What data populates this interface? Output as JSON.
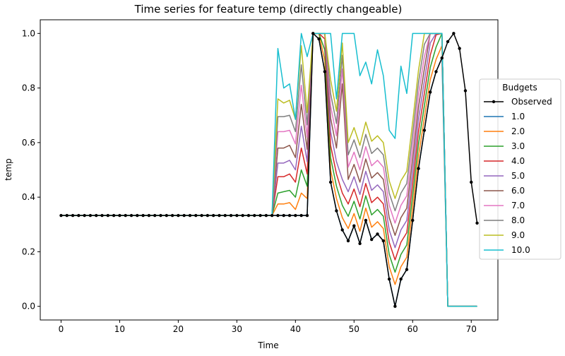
{
  "chart_data": {
    "type": "line",
    "title": "Time series for feature temp (directly changeable)",
    "xlabel": "Time",
    "ylabel": "temp",
    "xlim": [
      -3.55,
      74.55
    ],
    "ylim": [
      -0.05,
      1.05
    ],
    "xticks": [
      0,
      10,
      20,
      30,
      40,
      50,
      60,
      70
    ],
    "yticks": [
      0.0,
      0.2,
      0.4,
      0.6,
      0.8,
      1.0
    ],
    "tick_decimals": 1,
    "grid": false,
    "legend": {
      "title": "Budgets",
      "placement": "right"
    },
    "x": [
      0,
      1,
      2,
      3,
      4,
      5,
      6,
      7,
      8,
      9,
      10,
      11,
      12,
      13,
      14,
      15,
      16,
      17,
      18,
      19,
      20,
      21,
      22,
      23,
      24,
      25,
      26,
      27,
      28,
      29,
      30,
      31,
      32,
      33,
      34,
      35,
      36,
      37,
      38,
      39,
      40,
      41,
      42,
      43,
      44,
      45,
      46,
      47,
      48,
      49,
      50,
      51,
      52,
      53,
      54,
      55,
      56,
      57,
      58,
      59,
      60,
      61,
      62,
      63,
      64,
      65,
      66,
      67,
      68,
      69,
      70,
      71
    ],
    "series": [
      {
        "name": "Observed",
        "color": "#000000",
        "marker": true,
        "values": [
          0.333,
          0.333,
          0.333,
          0.333,
          0.333,
          0.333,
          0.333,
          0.333,
          0.333,
          0.333,
          0.333,
          0.333,
          0.333,
          0.333,
          0.333,
          0.333,
          0.333,
          0.333,
          0.333,
          0.333,
          0.333,
          0.333,
          0.333,
          0.333,
          0.333,
          0.333,
          0.333,
          0.333,
          0.333,
          0.333,
          0.333,
          0.333,
          0.333,
          0.333,
          0.333,
          0.333,
          0.333,
          0.333,
          0.333,
          0.333,
          0.333,
          0.333,
          0.333,
          1.0,
          0.98,
          0.86,
          0.455,
          0.35,
          0.28,
          0.24,
          0.295,
          0.23,
          0.315,
          0.245,
          0.265,
          0.24,
          0.1,
          0.0,
          0.1,
          0.135,
          0.315,
          0.505,
          0.645,
          0.785,
          0.86,
          0.91,
          0.97,
          1.0,
          0.945,
          0.79,
          0.455,
          0.305
        ]
      },
      {
        "name": "1.0",
        "color": "#1f77b4",
        "values": [
          0.333,
          0.333,
          0.333,
          0.333,
          0.333,
          0.333,
          0.333,
          0.333,
          0.333,
          0.333,
          0.333,
          0.333,
          0.333,
          0.333,
          0.333,
          0.333,
          0.333,
          0.333,
          0.333,
          0.333,
          0.333,
          0.333,
          0.333,
          0.333,
          0.333,
          0.333,
          0.333,
          0.333,
          0.333,
          0.333,
          0.333,
          0.333,
          0.333,
          0.333,
          0.333,
          0.333,
          0.333,
          0.333,
          0.333,
          0.333,
          0.333,
          0.333,
          0.333,
          1.0,
          0.98,
          0.86,
          0.455,
          0.35,
          0.28,
          0.24,
          0.295,
          0.23,
          0.315,
          0.245,
          0.265,
          0.24,
          0.1,
          0.0,
          0.1,
          0.135,
          0.315,
          0.505,
          0.645,
          0.785,
          0.86,
          0.91,
          0.0,
          0.0,
          0.0,
          0.0,
          0.0,
          0.0
        ]
      },
      {
        "name": "2.0",
        "color": "#ff7f0e",
        "values": [
          0.333,
          0.333,
          0.333,
          0.333,
          0.333,
          0.333,
          0.333,
          0.333,
          0.333,
          0.333,
          0.333,
          0.333,
          0.333,
          0.333,
          0.333,
          0.333,
          0.333,
          0.333,
          0.333,
          0.333,
          0.333,
          0.333,
          0.333,
          0.333,
          0.333,
          0.333,
          0.333,
          0.333,
          0.333,
          0.333,
          0.333,
          0.333,
          0.333,
          0.333,
          0.333,
          0.333,
          0.333,
          0.375,
          0.375,
          0.38,
          0.355,
          0.415,
          0.395,
          1.0,
          1.0,
          0.9,
          0.5,
          0.395,
          0.325,
          0.285,
          0.34,
          0.275,
          0.36,
          0.29,
          0.31,
          0.285,
          0.145,
          0.08,
          0.145,
          0.18,
          0.36,
          0.55,
          0.69,
          0.83,
          0.905,
          0.955,
          0.0,
          0.0,
          0.0,
          0.0,
          0.0,
          0.0
        ]
      },
      {
        "name": "3.0",
        "color": "#2ca02c",
        "values": [
          0.333,
          0.333,
          0.333,
          0.333,
          0.333,
          0.333,
          0.333,
          0.333,
          0.333,
          0.333,
          0.333,
          0.333,
          0.333,
          0.333,
          0.333,
          0.333,
          0.333,
          0.333,
          0.333,
          0.333,
          0.333,
          0.333,
          0.333,
          0.333,
          0.333,
          0.333,
          0.333,
          0.333,
          0.333,
          0.333,
          0.333,
          0.333,
          0.333,
          0.333,
          0.333,
          0.333,
          0.333,
          0.415,
          0.42,
          0.425,
          0.4,
          0.5,
          0.44,
          1.0,
          1.0,
          0.94,
          0.545,
          0.44,
          0.37,
          0.33,
          0.385,
          0.32,
          0.405,
          0.335,
          0.355,
          0.33,
          0.19,
          0.125,
          0.19,
          0.225,
          0.405,
          0.595,
          0.735,
          0.875,
          0.95,
          1.0,
          0.0,
          0.0,
          0.0,
          0.0,
          0.0,
          0.0
        ]
      },
      {
        "name": "4.0",
        "color": "#d62728",
        "values": [
          0.333,
          0.333,
          0.333,
          0.333,
          0.333,
          0.333,
          0.333,
          0.333,
          0.333,
          0.333,
          0.333,
          0.333,
          0.333,
          0.333,
          0.333,
          0.333,
          0.333,
          0.333,
          0.333,
          0.333,
          0.333,
          0.333,
          0.333,
          0.333,
          0.333,
          0.333,
          0.333,
          0.333,
          0.333,
          0.333,
          0.333,
          0.333,
          0.333,
          0.333,
          0.333,
          0.333,
          0.333,
          0.475,
          0.475,
          0.485,
          0.455,
          0.58,
          0.485,
          1.0,
          1.0,
          0.98,
          0.59,
          0.485,
          0.415,
          0.375,
          0.43,
          0.365,
          0.45,
          0.38,
          0.4,
          0.375,
          0.235,
          0.17,
          0.235,
          0.27,
          0.45,
          0.64,
          0.78,
          0.92,
          0.995,
          1.0,
          0.0,
          0.0,
          0.0,
          0.0,
          0.0,
          0.0
        ]
      },
      {
        "name": "5.0",
        "color": "#9467bd",
        "values": [
          0.333,
          0.333,
          0.333,
          0.333,
          0.333,
          0.333,
          0.333,
          0.333,
          0.333,
          0.333,
          0.333,
          0.333,
          0.333,
          0.333,
          0.333,
          0.333,
          0.333,
          0.333,
          0.333,
          0.333,
          0.333,
          0.333,
          0.333,
          0.333,
          0.333,
          0.333,
          0.333,
          0.333,
          0.333,
          0.333,
          0.333,
          0.333,
          0.333,
          0.333,
          0.333,
          0.333,
          0.333,
          0.525,
          0.525,
          0.535,
          0.5,
          0.66,
          0.53,
          1.0,
          1.0,
          1.0,
          0.64,
          0.53,
          0.465,
          0.42,
          0.475,
          0.41,
          0.495,
          0.425,
          0.445,
          0.42,
          0.28,
          0.215,
          0.28,
          0.315,
          0.495,
          0.685,
          0.825,
          0.965,
          1.0,
          1.0,
          0.0,
          0.0,
          0.0,
          0.0,
          0.0,
          0.0
        ]
      },
      {
        "name": "6.0",
        "color": "#8c564b",
        "values": [
          0.333,
          0.333,
          0.333,
          0.333,
          0.333,
          0.333,
          0.333,
          0.333,
          0.333,
          0.333,
          0.333,
          0.333,
          0.333,
          0.333,
          0.333,
          0.333,
          0.333,
          0.333,
          0.333,
          0.333,
          0.333,
          0.333,
          0.333,
          0.333,
          0.333,
          0.333,
          0.333,
          0.333,
          0.333,
          0.333,
          0.333,
          0.333,
          0.333,
          0.333,
          0.333,
          0.333,
          0.333,
          0.58,
          0.58,
          0.59,
          0.545,
          0.74,
          0.575,
          1.0,
          1.0,
          1.0,
          0.69,
          0.58,
          0.815,
          0.465,
          0.52,
          0.455,
          0.54,
          0.47,
          0.49,
          0.465,
          0.325,
          0.26,
          0.325,
          0.36,
          0.54,
          0.73,
          0.87,
          1.0,
          1.0,
          1.0,
          0.0,
          0.0,
          0.0,
          0.0,
          0.0,
          0.0
        ]
      },
      {
        "name": "7.0",
        "color": "#e377c2",
        "values": [
          0.333,
          0.333,
          0.333,
          0.333,
          0.333,
          0.333,
          0.333,
          0.333,
          0.333,
          0.333,
          0.333,
          0.333,
          0.333,
          0.333,
          0.333,
          0.333,
          0.333,
          0.333,
          0.333,
          0.333,
          0.333,
          0.333,
          0.333,
          0.333,
          0.333,
          0.333,
          0.333,
          0.333,
          0.333,
          0.333,
          0.333,
          0.333,
          0.333,
          0.333,
          0.333,
          0.333,
          0.333,
          0.64,
          0.64,
          0.645,
          0.595,
          0.81,
          0.62,
          1.0,
          1.0,
          1.0,
          0.735,
          0.625,
          0.87,
          0.51,
          0.565,
          0.5,
          0.585,
          0.515,
          0.535,
          0.51,
          0.37,
          0.305,
          0.37,
          0.405,
          0.585,
          0.775,
          0.915,
          1.0,
          1.0,
          1.0,
          0.0,
          0.0,
          0.0,
          0.0,
          0.0,
          0.0
        ]
      },
      {
        "name": "8.0",
        "color": "#7f7f7f",
        "values": [
          0.333,
          0.333,
          0.333,
          0.333,
          0.333,
          0.333,
          0.333,
          0.333,
          0.333,
          0.333,
          0.333,
          0.333,
          0.333,
          0.333,
          0.333,
          0.333,
          0.333,
          0.333,
          0.333,
          0.333,
          0.333,
          0.333,
          0.333,
          0.333,
          0.333,
          0.333,
          0.333,
          0.333,
          0.333,
          0.333,
          0.333,
          0.333,
          0.333,
          0.333,
          0.333,
          0.333,
          0.333,
          0.695,
          0.695,
          0.7,
          0.64,
          0.885,
          0.665,
          1.0,
          1.0,
          1.0,
          0.78,
          0.67,
          0.92,
          0.555,
          0.61,
          0.545,
          0.63,
          0.56,
          0.58,
          0.555,
          0.415,
          0.35,
          0.415,
          0.45,
          0.63,
          0.82,
          0.96,
          1.0,
          1.0,
          1.0,
          0.0,
          0.0,
          0.0,
          0.0,
          0.0,
          0.0
        ]
      },
      {
        "name": "9.0",
        "color": "#bcbd22",
        "values": [
          0.333,
          0.333,
          0.333,
          0.333,
          0.333,
          0.333,
          0.333,
          0.333,
          0.333,
          0.333,
          0.333,
          0.333,
          0.333,
          0.333,
          0.333,
          0.333,
          0.333,
          0.333,
          0.333,
          0.333,
          0.333,
          0.333,
          0.333,
          0.333,
          0.333,
          0.333,
          0.333,
          0.333,
          0.333,
          0.333,
          0.333,
          0.333,
          0.333,
          0.333,
          0.333,
          0.333,
          0.333,
          0.76,
          0.745,
          0.755,
          0.685,
          0.955,
          0.71,
          1.0,
          1.0,
          1.0,
          0.83,
          0.715,
          0.965,
          0.6,
          0.655,
          0.59,
          0.675,
          0.605,
          0.625,
          0.6,
          0.46,
          0.395,
          0.46,
          0.495,
          0.675,
          0.865,
          1.0,
          1.0,
          1.0,
          1.0,
          0.0,
          0.0,
          0.0,
          0.0,
          0.0,
          0.0
        ]
      },
      {
        "name": "10.0",
        "color": "#17becf",
        "values": [
          0.333,
          0.333,
          0.333,
          0.333,
          0.333,
          0.333,
          0.333,
          0.333,
          0.333,
          0.333,
          0.333,
          0.333,
          0.333,
          0.333,
          0.333,
          0.333,
          0.333,
          0.333,
          0.333,
          0.333,
          0.333,
          0.333,
          0.333,
          0.333,
          0.333,
          0.333,
          0.333,
          0.333,
          0.333,
          0.333,
          0.333,
          0.333,
          0.333,
          0.333,
          0.333,
          0.333,
          0.333,
          0.945,
          0.8,
          0.815,
          0.685,
          1.0,
          0.915,
          1.0,
          1.0,
          1.0,
          1.0,
          0.76,
          1.0,
          1.0,
          1.0,
          0.845,
          0.895,
          0.815,
          0.94,
          0.845,
          0.645,
          0.615,
          0.88,
          0.78,
          1.0,
          1.0,
          1.0,
          1.0,
          1.0,
          1.0,
          0.0,
          0.0,
          0.0,
          0.0,
          0.0,
          0.0
        ]
      }
    ]
  }
}
